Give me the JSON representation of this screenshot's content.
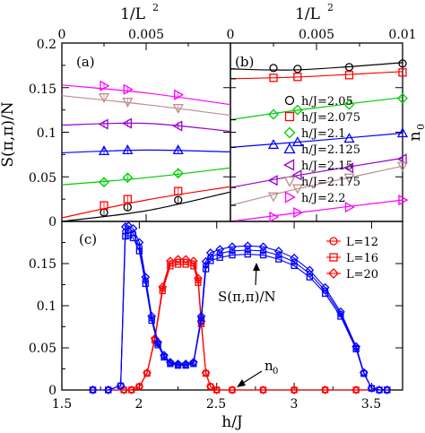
{
  "chart_data": [
    {
      "panel": "(a)",
      "type": "line",
      "xlabel_top": "1/L",
      "xlabel_top_exp": "2",
      "ylabel": "S(π,π)/N",
      "xlim": [
        0,
        0.01
      ],
      "ylim": [
        0,
        0.2
      ],
      "x_ticks": [
        "0",
        "0.005"
      ],
      "y_ticks": [
        "0",
        "0.05",
        "0.1",
        "0.15",
        "0.2"
      ],
      "x": [
        0.0025,
        0.0039,
        0.0069
      ],
      "series": [
        {
          "name": "h/J=2.05",
          "color": "#000000",
          "marker": "circle",
          "values": [
            0.01,
            0.016,
            0.024
          ],
          "fit": [
            0.0,
            0.012,
            0.033
          ]
        },
        {
          "name": "h/J=2.075",
          "color": "#ff0000",
          "marker": "square",
          "values": [
            0.018,
            0.025,
            0.034
          ],
          "fit": [
            0.004,
            0.024,
            0.039
          ]
        },
        {
          "name": "h/J=2.1",
          "color": "#00cc00",
          "marker": "diamond",
          "values": [
            0.044,
            0.049,
            0.054
          ],
          "fit": [
            0.041,
            0.049,
            0.06
          ]
        },
        {
          "name": "h/J=2.125",
          "color": "#0000ff",
          "marker": "triangle-up",
          "values": [
            0.079,
            0.08,
            0.08
          ],
          "fit": [
            0.077,
            0.08,
            0.078
          ]
        },
        {
          "name": "h/J=2.15",
          "color": "#9900cc",
          "marker": "triangle-left",
          "values": [
            0.109,
            0.11,
            0.107
          ],
          "fit": [
            0.108,
            0.11,
            0.101
          ]
        },
        {
          "name": "h/J=2.175",
          "color": "#bc8f8f",
          "marker": "triangle-down",
          "values": [
            0.139,
            0.134,
            0.127
          ],
          "fit": [
            0.141,
            0.131,
            0.119
          ]
        },
        {
          "name": "h/J=2.2",
          "color": "#ff00ff",
          "marker": "triangle-right",
          "values": [
            0.152,
            0.148,
            0.142
          ],
          "fit": [
            0.153,
            0.144,
            0.131
          ]
        }
      ]
    },
    {
      "panel": "(b)",
      "type": "line",
      "xlabel_top": "1/L",
      "xlabel_top_exp": "2",
      "ylabel_right": "n",
      "ylabel_right_sub": "0",
      "xlim": [
        0,
        0.01
      ],
      "x_ticks": [
        "0",
        "0.005",
        "0.01"
      ],
      "x": [
        0.0025,
        0.0039,
        0.0069,
        0.01
      ],
      "legend": [
        "h/J=2.05",
        "h/J=2.075",
        "h/J=2.1",
        "h/J=2.125",
        "h/J=2.15",
        "h/J=2.175",
        "h/J=2.2"
      ],
      "series": [
        {
          "name": "h/J=2.05",
          "values": [
            0.172,
            0.171,
            0.173,
            0.177
          ],
          "fit": [
            0.171,
            0.17,
            0.178
          ]
        },
        {
          "name": "h/J=2.075",
          "values": [
            0.161,
            0.162,
            0.164,
            0.167
          ],
          "fit": [
            0.16,
            0.162,
            0.168
          ]
        },
        {
          "name": "h/J=2.1",
          "values": [
            0.12,
            0.125,
            0.131,
            0.138
          ],
          "fit": [
            0.114,
            0.125,
            0.139
          ]
        },
        {
          "name": "h/J=2.125",
          "values": [
            0.086,
            0.089,
            0.093,
            0.099
          ],
          "fit": [
            0.083,
            0.089,
            0.099
          ]
        },
        {
          "name": "h/J=2.15",
          "values": [
            0.046,
            0.052,
            0.06,
            0.07
          ],
          "fit": [
            0.038,
            0.052,
            0.071
          ]
        },
        {
          "name": "h/J=2.175",
          "values": [
            0.028,
            0.037,
            0.049,
            0.062
          ],
          "fit": [
            0.018,
            0.037,
            0.062
          ]
        },
        {
          "name": "h/J=2.2",
          "values": [
            0.005,
            0.01,
            0.016,
            0.024
          ],
          "fit": [
            0.0,
            0.01,
            0.024
          ]
        }
      ]
    },
    {
      "panel": "(c)",
      "type": "line",
      "xlabel": "h/J",
      "xlim": [
        1.5,
        3.7
      ],
      "ylim": [
        0,
        0.2
      ],
      "x_ticks": [
        "1.5",
        "2",
        "2.5",
        "3",
        "3.5"
      ],
      "y_ticks": [
        "0",
        "0.05",
        "0.1",
        "0.15"
      ],
      "legend": [
        "L=12",
        "L=16",
        "L=20"
      ],
      "annotations": {
        "structure_factor": "S(π,π)/N",
        "condensate": "n",
        "condensate_sub": "0"
      },
      "series": [
        {
          "name": "S(π,π)/N",
          "color": "#0000ff",
          "x": [
            1.7,
            1.8,
            1.88,
            1.91,
            1.93,
            1.96,
            2.0,
            2.04,
            2.08,
            2.12,
            2.16,
            2.2,
            2.25,
            2.3,
            2.35,
            2.4,
            2.43,
            2.46,
            2.52,
            2.6,
            2.7,
            2.8,
            2.9,
            3.0,
            3.1,
            3.2,
            3.3,
            3.4,
            3.45,
            3.5,
            3.55,
            3.6
          ],
          "values": [
            0,
            0,
            0.005,
            0.188,
            0.189,
            0.186,
            0.17,
            0.13,
            0.085,
            0.055,
            0.04,
            0.032,
            0.03,
            0.03,
            0.032,
            0.085,
            0.148,
            0.158,
            0.162,
            0.165,
            0.166,
            0.165,
            0.16,
            0.152,
            0.138,
            0.118,
            0.09,
            0.05,
            0.02,
            0.002,
            0,
            0
          ]
        },
        {
          "name": "n0",
          "color": "#ff0000",
          "x": [
            1.7,
            1.8,
            1.9,
            1.95,
            2.0,
            2.05,
            2.1,
            2.15,
            2.2,
            2.25,
            2.3,
            2.35,
            2.38,
            2.4,
            2.43,
            2.46,
            2.5,
            2.6,
            2.8,
            3.0,
            3.2,
            3.4,
            3.6
          ],
          "values": [
            0,
            0,
            0,
            0,
            0.004,
            0.02,
            0.06,
            0.12,
            0.15,
            0.152,
            0.152,
            0.15,
            0.13,
            0.08,
            0.02,
            0.004,
            0,
            0,
            0,
            0,
            0,
            0,
            0
          ]
        }
      ]
    }
  ]
}
